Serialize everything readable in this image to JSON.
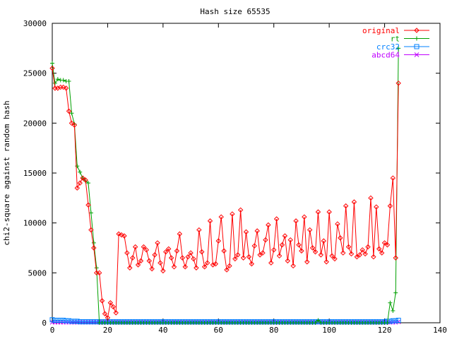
{
  "chart_data": {
    "type": "line",
    "title": "Hash size 65535",
    "xlabel": "",
    "ylabel": "chi2-square against random hash",
    "xlim": [
      0,
      140
    ],
    "ylim": [
      0,
      30000
    ],
    "xticks": [
      "0",
      "20",
      "40",
      "60",
      "80",
      "100",
      "120",
      "140"
    ],
    "yticks": [
      "0",
      "5000",
      "10000",
      "15000",
      "20000",
      "25000",
      "30000"
    ],
    "legend_position": "top-right",
    "x": [
      0,
      1,
      2,
      3,
      4,
      5,
      6,
      7,
      8,
      9,
      10,
      11,
      12,
      13,
      14,
      15,
      16,
      17,
      18,
      19,
      20,
      21,
      22,
      23,
      24,
      25,
      26,
      27,
      28,
      29,
      30,
      31,
      32,
      33,
      34,
      35,
      36,
      37,
      38,
      39,
      40,
      41,
      42,
      43,
      44,
      45,
      46,
      47,
      48,
      49,
      50,
      51,
      52,
      53,
      54,
      55,
      56,
      57,
      58,
      59,
      60,
      61,
      62,
      63,
      64,
      65,
      66,
      67,
      68,
      69,
      70,
      71,
      72,
      73,
      74,
      75,
      76,
      77,
      78,
      79,
      80,
      81,
      82,
      83,
      84,
      85,
      86,
      87,
      88,
      89,
      90,
      91,
      92,
      93,
      94,
      95,
      96,
      97,
      98,
      99,
      100,
      101,
      102,
      103,
      104,
      105,
      106,
      107,
      108,
      109,
      110,
      111,
      112,
      113,
      114,
      115,
      116,
      117,
      118,
      119,
      120,
      121,
      122,
      123,
      124,
      125
    ],
    "series": [
      {
        "name": "original",
        "color": "#ff0000",
        "marker": "diamond",
        "values": [
          25500,
          23500,
          23500,
          23600,
          23600,
          23500,
          21200,
          20000,
          19800,
          13500,
          14000,
          14500,
          14300,
          11800,
          9300,
          7500,
          5000,
          5000,
          2200,
          900,
          500,
          2000,
          1600,
          1000,
          8900,
          8800,
          8700,
          7000,
          5500,
          6500,
          7600,
          5800,
          6200,
          7600,
          7300,
          6200,
          5400,
          6800,
          8000,
          6000,
          5200,
          7100,
          7400,
          6500,
          5600,
          7200,
          8900,
          6500,
          5600,
          6600,
          7000,
          6400,
          5500,
          9300,
          7100,
          5600,
          6000,
          10200,
          5800,
          5900,
          8200,
          10600,
          7200,
          5300,
          5700,
          10900,
          6400,
          6800,
          11300,
          6500,
          9100,
          6600,
          5900,
          7700,
          9200,
          6800,
          7000,
          8300,
          9800,
          6000,
          7300,
          10400,
          6700,
          7800,
          8700,
          6200,
          8300,
          5700,
          10200,
          7800,
          7200,
          10600,
          6100,
          9300,
          7500,
          7100,
          11100,
          6800,
          8200,
          6100,
          11100,
          6700,
          6400,
          9900,
          8500,
          7000,
          11700,
          7600,
          6900,
          12100,
          6600,
          6800,
          7300,
          6900,
          7600,
          12500,
          6600,
          11600,
          7400,
          7000,
          8000,
          7800,
          11700,
          14500,
          6500,
          24000
        ]
      },
      {
        "name": "rt",
        "color": "#00a000",
        "marker": "plus",
        "values": [
          26000,
          24000,
          24400,
          24300,
          24300,
          24200,
          24200,
          21000,
          19900,
          15700,
          15100,
          14500,
          14200,
          14000,
          11000,
          8000,
          5500,
          0,
          0,
          0,
          0,
          0,
          0,
          0,
          0,
          0,
          0,
          0,
          0,
          0,
          0,
          0,
          0,
          0,
          0,
          0,
          0,
          0,
          0,
          0,
          0,
          0,
          0,
          0,
          0,
          0,
          0,
          0,
          0,
          0,
          0,
          0,
          0,
          0,
          0,
          0,
          0,
          0,
          0,
          0,
          0,
          0,
          0,
          0,
          0,
          0,
          0,
          0,
          0,
          0,
          0,
          0,
          0,
          0,
          0,
          0,
          0,
          0,
          0,
          0,
          0,
          0,
          0,
          0,
          0,
          0,
          0,
          0,
          0,
          0,
          0,
          0,
          0,
          0,
          0,
          0,
          250,
          0,
          0,
          0,
          0,
          0,
          0,
          0,
          0,
          0,
          0,
          0,
          0,
          0,
          0,
          0,
          0,
          0,
          0,
          0,
          0,
          0,
          0,
          0,
          0,
          0,
          2000,
          1200,
          3000,
          27500
        ]
      },
      {
        "name": "crc32",
        "color": "#0080ff",
        "marker": "square",
        "values": [
          300,
          250,
          250,
          250,
          250,
          200,
          200,
          150,
          150,
          150,
          100,
          100,
          100,
          100,
          100,
          100,
          100,
          100,
          100,
          100,
          100,
          100,
          100,
          100,
          100,
          100,
          100,
          100,
          100,
          100,
          100,
          100,
          100,
          100,
          100,
          100,
          100,
          100,
          100,
          100,
          100,
          100,
          100,
          100,
          100,
          100,
          100,
          100,
          100,
          100,
          100,
          100,
          100,
          100,
          100,
          100,
          100,
          100,
          100,
          100,
          100,
          100,
          100,
          100,
          100,
          100,
          100,
          100,
          100,
          100,
          100,
          100,
          100,
          100,
          100,
          100,
          100,
          100,
          100,
          100,
          100,
          100,
          100,
          100,
          100,
          100,
          100,
          100,
          100,
          100,
          100,
          100,
          100,
          100,
          100,
          100,
          100,
          100,
          100,
          100,
          100,
          100,
          100,
          100,
          100,
          100,
          100,
          100,
          100,
          100,
          100,
          100,
          100,
          100,
          100,
          100,
          100,
          100,
          100,
          100,
          100,
          150,
          150,
          200,
          200,
          250
        ]
      },
      {
        "name": "abcd64",
        "color": "#c000ff",
        "marker": "cross",
        "values": [
          50,
          50,
          50,
          50,
          50,
          50,
          50,
          50,
          50,
          50,
          50,
          50,
          50,
          50,
          50,
          50,
          50,
          50,
          50,
          50,
          50,
          50,
          50,
          50,
          50,
          50,
          50,
          50,
          50,
          50,
          50,
          50,
          50,
          50,
          50,
          50,
          50,
          50,
          50,
          50,
          50,
          50,
          50,
          50,
          50,
          50,
          50,
          50,
          50,
          50,
          50,
          50,
          50,
          50,
          50,
          50,
          50,
          50,
          50,
          50,
          50,
          50,
          50,
          50,
          50,
          50,
          50,
          50,
          50,
          50,
          50,
          50,
          50,
          50,
          50,
          50,
          50,
          50,
          50,
          50,
          50,
          50,
          50,
          50,
          50,
          50,
          50,
          50,
          50,
          50,
          50,
          50,
          50,
          50,
          50,
          50,
          50,
          50,
          50,
          50,
          50,
          50,
          50,
          50,
          50,
          50,
          50,
          50,
          50,
          50,
          50,
          50,
          50,
          50,
          50,
          50,
          50,
          50,
          50,
          50,
          50,
          50,
          50,
          50,
          50,
          100
        ]
      }
    ]
  }
}
